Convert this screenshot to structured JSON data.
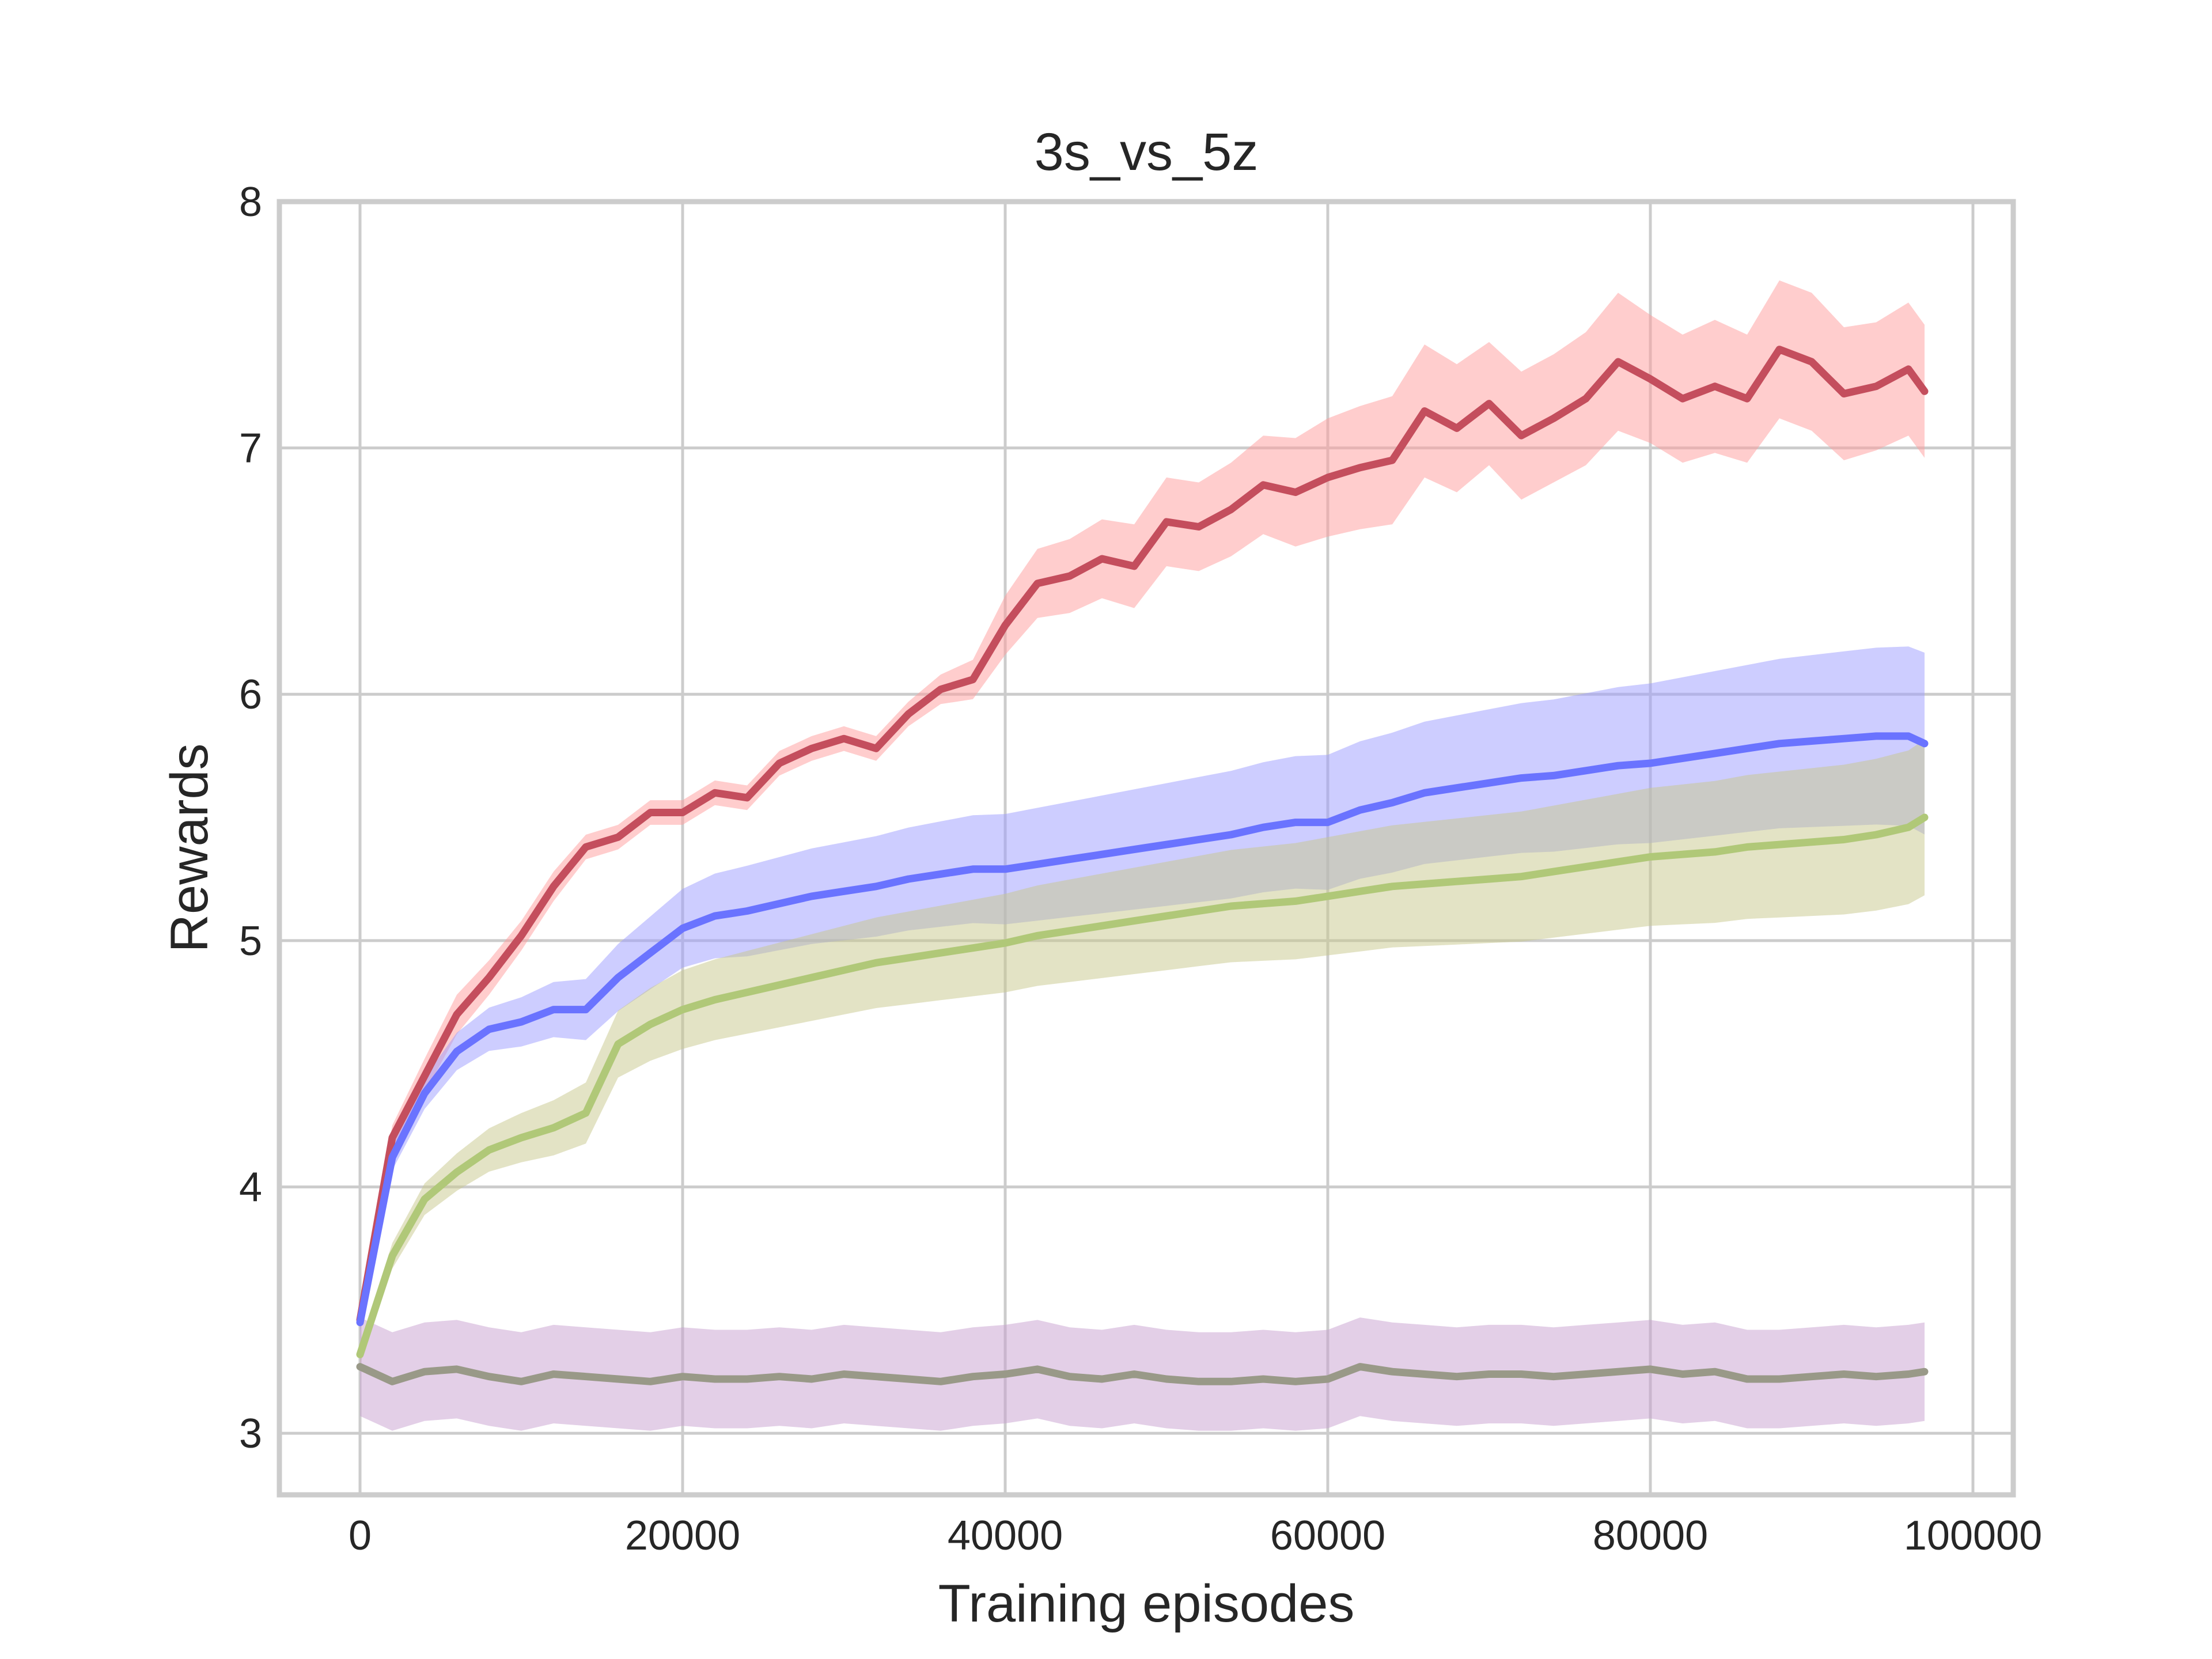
{
  "chart_data": {
    "type": "line",
    "title": "3s_vs_5z",
    "xlabel": "Training episodes",
    "ylabel": "Rewards",
    "xlim": [
      -5000,
      102500
    ],
    "ylim": [
      2.75,
      8.0
    ],
    "xticks": [
      0,
      20000,
      40000,
      60000,
      80000,
      100000
    ],
    "xtick_labels": [
      "0",
      "20000",
      "40000",
      "60000",
      "80000",
      "100000"
    ],
    "yticks": [
      3,
      4,
      5,
      6,
      7,
      8
    ],
    "ytick_labels": [
      "3",
      "4",
      "5",
      "6",
      "7",
      "8"
    ],
    "grid": true,
    "legend": "none",
    "x": [
      0,
      2000,
      4000,
      6000,
      8000,
      10000,
      12000,
      14000,
      16000,
      18000,
      20000,
      22000,
      24000,
      26000,
      28000,
      30000,
      32000,
      34000,
      36000,
      38000,
      40000,
      42000,
      44000,
      46000,
      48000,
      50000,
      52000,
      54000,
      56000,
      58000,
      60000,
      62000,
      64000,
      66000,
      68000,
      70000,
      72000,
      74000,
      76000,
      78000,
      80000,
      82000,
      84000,
      86000,
      88000,
      90000,
      92000,
      94000,
      96000,
      97000
    ],
    "series": [
      {
        "color": "#c44e5d",
        "band_color": "#ff9c9c",
        "values": [
          3.46,
          4.2,
          4.45,
          4.7,
          4.85,
          5.02,
          5.22,
          5.38,
          5.42,
          5.52,
          5.52,
          5.6,
          5.58,
          5.72,
          5.78,
          5.82,
          5.78,
          5.92,
          6.02,
          6.06,
          6.28,
          6.45,
          6.48,
          6.55,
          6.52,
          6.7,
          6.68,
          6.75,
          6.85,
          6.82,
          6.88,
          6.92,
          6.95,
          7.15,
          7.08,
          7.18,
          7.05,
          7.12,
          7.2,
          7.35,
          7.28,
          7.2,
          7.25,
          7.2,
          7.4,
          7.35,
          7.22,
          7.25,
          7.32,
          7.23
        ],
        "band": [
          0.02,
          0.05,
          0.07,
          0.08,
          0.07,
          0.06,
          0.06,
          0.05,
          0.05,
          0.05,
          0.05,
          0.05,
          0.05,
          0.05,
          0.05,
          0.05,
          0.05,
          0.05,
          0.06,
          0.08,
          0.12,
          0.14,
          0.15,
          0.16,
          0.17,
          0.18,
          0.18,
          0.19,
          0.2,
          0.22,
          0.24,
          0.25,
          0.26,
          0.27,
          0.26,
          0.25,
          0.26,
          0.26,
          0.27,
          0.28,
          0.26,
          0.26,
          0.27,
          0.26,
          0.28,
          0.28,
          0.27,
          0.26,
          0.27,
          0.27
        ]
      },
      {
        "color": "#6a73ff",
        "band_color": "#9c9cff",
        "values": [
          3.45,
          4.12,
          4.38,
          4.55,
          4.64,
          4.67,
          4.72,
          4.72,
          4.85,
          4.95,
          5.05,
          5.1,
          5.12,
          5.15,
          5.18,
          5.2,
          5.22,
          5.25,
          5.27,
          5.29,
          5.29,
          5.31,
          5.33,
          5.35,
          5.37,
          5.39,
          5.41,
          5.43,
          5.46,
          5.48,
          5.48,
          5.53,
          5.56,
          5.6,
          5.62,
          5.64,
          5.66,
          5.67,
          5.69,
          5.71,
          5.72,
          5.74,
          5.76,
          5.78,
          5.8,
          5.81,
          5.82,
          5.83,
          5.83,
          5.8
        ]
      },
      {
        "color": "#b0c878",
        "band_color": "#c8c88c",
        "values": [
          3.32,
          3.72,
          3.95,
          4.06,
          4.15,
          4.2,
          4.24,
          4.3,
          4.58,
          4.66,
          4.72,
          4.76,
          4.79,
          4.82,
          4.85,
          4.88,
          4.91,
          4.93,
          4.95,
          4.97,
          4.99,
          5.02,
          5.04,
          5.06,
          5.08,
          5.1,
          5.12,
          5.14,
          5.15,
          5.16,
          5.18,
          5.2,
          5.22,
          5.23,
          5.24,
          5.25,
          5.26,
          5.28,
          5.3,
          5.32,
          5.34,
          5.35,
          5.36,
          5.38,
          5.39,
          5.4,
          5.41,
          5.43,
          5.46,
          5.5
        ]
      },
      {
        "color": "#999988",
        "band_color": "#c8a0d0",
        "values": [
          3.27,
          3.21,
          3.25,
          3.26,
          3.23,
          3.21,
          3.24,
          3.23,
          3.22,
          3.21,
          3.23,
          3.22,
          3.22,
          3.23,
          3.22,
          3.24,
          3.23,
          3.22,
          3.21,
          3.23,
          3.24,
          3.26,
          3.23,
          3.22,
          3.24,
          3.22,
          3.21,
          3.21,
          3.22,
          3.21,
          3.22,
          3.27,
          3.25,
          3.24,
          3.23,
          3.24,
          3.24,
          3.23,
          3.24,
          3.25,
          3.26,
          3.24,
          3.25,
          3.22,
          3.22,
          3.23,
          3.24,
          3.23,
          3.24,
          3.25
        ]
      }
    ]
  }
}
